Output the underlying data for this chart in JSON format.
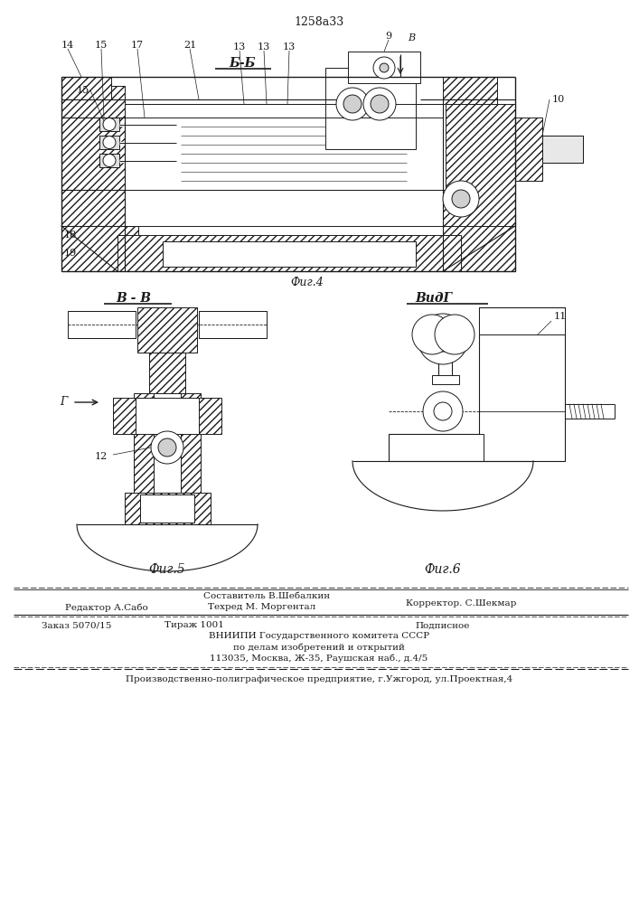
{
  "title": "1258а33",
  "fig4_label": "Б-Б",
  "fig4_caption": "Фиг.4",
  "fig5_label": "В - В",
  "fig5_caption": "Фиг.5",
  "fig6_label": "ВидГ",
  "fig6_caption": "Фиг.6",
  "label_9": "9",
  "label_8": "В",
  "label_10": "10",
  "label_14": "14",
  "label_15a": "15",
  "label_15b": "15",
  "label_17": "17",
  "label_21": "21",
  "label_13a": "13",
  "label_13b": "13",
  "label_13c": "13",
  "label_18": "18",
  "label_19": "19",
  "label_12": "12",
  "label_11": "11",
  "label_G": "Г",
  "footer_composer": "Составитель В.Шебалкин",
  "footer_editor": "Редактор А.Сабо",
  "footer_techred": "Техред М. Моргентал",
  "footer_corrector": "Корректор. С.Шекмар",
  "footer_order": "Заказ 5070/15",
  "footer_tirazh": "Тираж 1001",
  "footer_podpisnoe": "Подписное",
  "footer_vniip1": "ВНИИПИ Государственного комитета СССР",
  "footer_vniip2": "по делам изобретений и открытий",
  "footer_addr": "113035, Москва, Ж-35, Раушская наб., д.4/5",
  "footer_plant": "Производственно-полиграфическое предприятие, г.Ужгород, ул.Проектная,4",
  "bg_color": "#ffffff",
  "line_color": "#1a1a1a"
}
